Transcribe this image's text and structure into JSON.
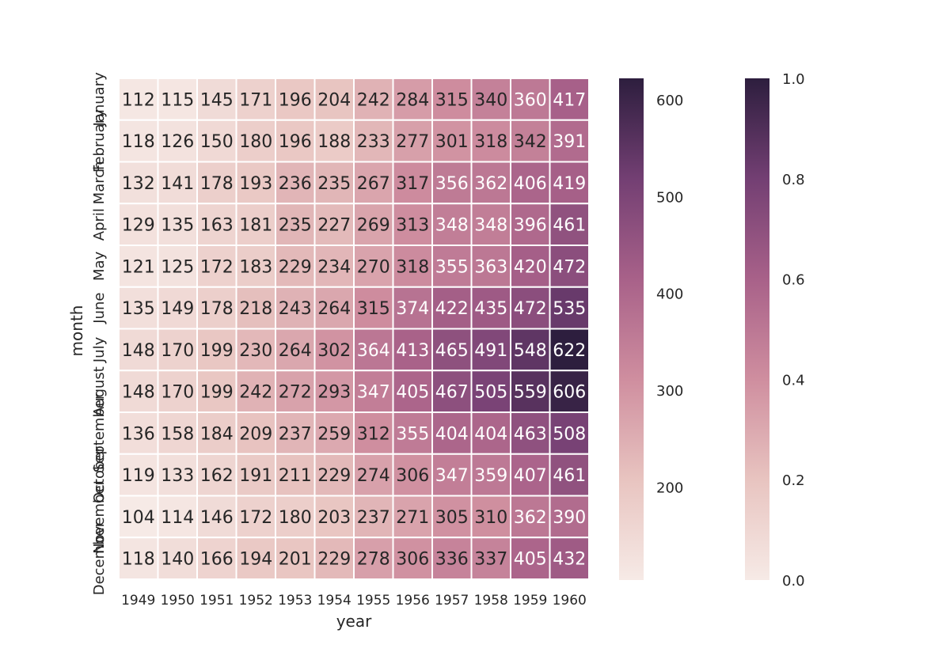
{
  "chart_data": {
    "type": "heatmap",
    "xlabel": "year",
    "ylabel": "month",
    "x": [
      "1949",
      "1950",
      "1951",
      "1952",
      "1953",
      "1954",
      "1955",
      "1956",
      "1957",
      "1958",
      "1959",
      "1960"
    ],
    "y": [
      "January",
      "February",
      "March",
      "April",
      "May",
      "June",
      "July",
      "August",
      "September",
      "October",
      "November",
      "December"
    ],
    "values": [
      [
        112,
        115,
        145,
        171,
        196,
        204,
        242,
        284,
        315,
        340,
        360,
        417
      ],
      [
        118,
        126,
        150,
        180,
        196,
        188,
        233,
        277,
        301,
        318,
        342,
        391
      ],
      [
        132,
        141,
        178,
        193,
        236,
        235,
        267,
        317,
        356,
        362,
        406,
        419
      ],
      [
        129,
        135,
        163,
        181,
        235,
        227,
        269,
        313,
        348,
        348,
        396,
        461
      ],
      [
        121,
        125,
        172,
        183,
        229,
        234,
        270,
        318,
        355,
        363,
        420,
        472
      ],
      [
        135,
        149,
        178,
        218,
        243,
        264,
        315,
        374,
        422,
        435,
        472,
        535
      ],
      [
        148,
        170,
        199,
        230,
        264,
        302,
        364,
        413,
        465,
        491,
        548,
        622
      ],
      [
        148,
        170,
        199,
        242,
        272,
        293,
        347,
        405,
        467,
        505,
        559,
        606
      ],
      [
        136,
        158,
        184,
        209,
        237,
        259,
        312,
        355,
        404,
        404,
        463,
        508
      ],
      [
        119,
        133,
        162,
        191,
        211,
        229,
        274,
        306,
        347,
        359,
        407,
        461
      ],
      [
        104,
        114,
        146,
        172,
        180,
        203,
        237,
        271,
        305,
        310,
        362,
        390
      ],
      [
        118,
        140,
        166,
        194,
        201,
        229,
        278,
        306,
        336,
        337,
        405,
        432
      ]
    ],
    "value_range": [
      104,
      622
    ],
    "annotated": true,
    "colormap": [
      "#f6eae6",
      "#e8c4c0",
      "#cf8e9f",
      "#a86189",
      "#733f73",
      "#2d1e3e"
    ],
    "colorbars": [
      {
        "ticks": [
          200,
          300,
          400,
          500,
          600
        ],
        "range": [
          104,
          622
        ]
      },
      {
        "ticks": [
          "0.0",
          "0.2",
          "0.4",
          "0.6",
          "0.8",
          "1.0"
        ],
        "range": [
          0,
          1
        ]
      }
    ]
  }
}
